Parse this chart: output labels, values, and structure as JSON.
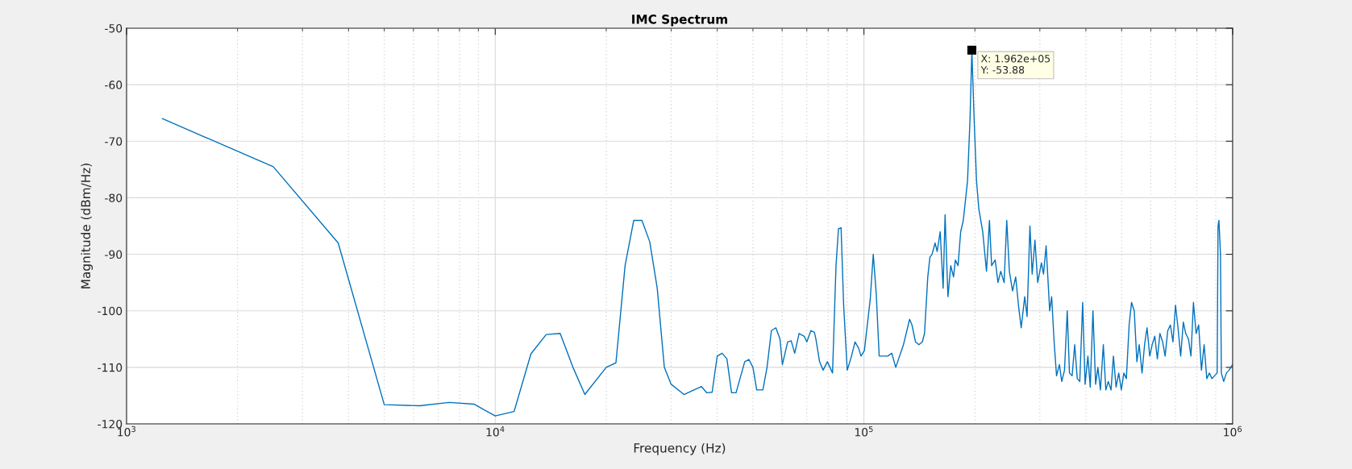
{
  "chart_data": {
    "type": "line",
    "title": "IMC Spectrum",
    "xlabel": "Frequency (Hz)",
    "ylabel": "Magnitude (dBm/Hz)",
    "log": "x",
    "grid": true,
    "marker": "none",
    "line_style": "solid",
    "xlim": [
      1000,
      1000000
    ],
    "xticks": [
      {
        "value": 1000,
        "label": "10$^{3}$"
      },
      {
        "value": 10000,
        "label": "10$^{4}$"
      },
      {
        "value": 100000,
        "label": "10$^{5}$"
      },
      {
        "value": 1000000,
        "label": "10$^{6}$"
      }
    ],
    "ylim": [
      -120,
      -50
    ],
    "yticks": [
      -120,
      -110,
      -100,
      -90,
      -80,
      -70,
      -60,
      -50
    ],
    "annotations": [
      {
        "text": "X: 1.962e+05\nY: -53.88",
        "x": 196200,
        "y": -53.88
      }
    ],
    "series": [
      {
        "color": "#0072bd",
        "x": [
          1250,
          2500,
          3750,
          5000,
          6250,
          7500,
          8750,
          10000,
          11250,
          12500,
          13750,
          15000,
          16250,
          17500,
          20000,
          21250,
          22500,
          23750,
          25000,
          26250,
          27500,
          28750,
          30000,
          32500,
          36250,
          37500,
          38750,
          40000,
          41250,
          42500,
          43750,
          45000,
          47500,
          48750,
          50000,
          51200,
          53200,
          54600,
          56100,
          57700,
          59200,
          60100,
          62100,
          63500,
          64900,
          66700,
          68900,
          70000,
          71800,
          73400,
          74100,
          75800,
          77500,
          79600,
          82200,
          84000,
          85300,
          86700,
          88100,
          90100,
          92100,
          94600,
          96600,
          98200,
          100300,
          104000,
          106000,
          108000,
          110000,
          116000,
          119000,
          122000,
          128000,
          133000,
          135000,
          138000,
          141000,
          144000,
          146000,
          149000,
          151000,
          153000,
          156000,
          158000,
          161000,
          164000,
          166000,
          169000,
          172000,
          175000,
          177000,
          180000,
          183000,
          186000,
          191000,
          194000,
          196200,
          199000,
          202000,
          205000,
          210000,
          215000,
          219000,
          222000,
          227000,
          231000,
          235000,
          240000,
          244000,
          248000,
          253000,
          258000,
          263000,
          267000,
          273000,
          277000,
          282000,
          286000,
          291000,
          296000,
          303000,
          307000,
          312000,
          319000,
          323000,
          328000,
          333000,
          339000,
          344000,
          350000,
          356000,
          361000,
          367000,
          373000,
          379000,
          385000,
          392000,
          398000,
          405000,
          411000,
          418000,
          425000,
          431000,
          438000,
          446000,
          453000,
          460000,
          468000,
          475000,
          483000,
          491000,
          499000,
          507000,
          515000,
          524000,
          532000,
          541000,
          550000,
          558000,
          568000,
          577000,
          586000,
          596000,
          605000,
          615000,
          625000,
          635000,
          646000,
          656000,
          667000,
          678000,
          689000,
          700000,
          711000,
          723000,
          735000,
          746000,
          759000,
          771000,
          783000,
          796000,
          809000,
          823000,
          837000,
          851000,
          865000,
          879000,
          893000,
          908000,
          913000,
          918000,
          927000,
          932000,
          946000,
          962000,
          978000,
          1000000
        ],
        "values": [
          -66,
          -74.5,
          -88,
          -116.6,
          -116.8,
          -116.2,
          -116.5,
          -118.6,
          -117.8,
          -107.6,
          -104.2,
          -104,
          -110,
          -114.8,
          -110,
          -109.2,
          -92,
          -84,
          -84,
          -87.8,
          -96,
          -110,
          -113,
          -114.8,
          -113.4,
          -114.5,
          -114.4,
          -108,
          -107.5,
          -108.5,
          -114.5,
          -114.5,
          -109,
          -108.6,
          -110,
          -114,
          -114,
          -110,
          -103.5,
          -103,
          -105,
          -109.5,
          -105.5,
          -105.3,
          -107.5,
          -104,
          -104.5,
          -105.5,
          -103.5,
          -103.8,
          -105,
          -109,
          -110.5,
          -109,
          -111,
          -92,
          -85.5,
          -85.3,
          -99,
          -110.5,
          -108.5,
          -105.5,
          -106.5,
          -108,
          -107,
          -98,
          -90,
          -97,
          -108,
          -108,
          -107.5,
          -110,
          -106,
          -101.5,
          -102.5,
          -105.5,
          -106,
          -105.5,
          -104,
          -94,
          -90.5,
          -90,
          -88,
          -89.5,
          -86,
          -96,
          -83,
          -97.5,
          -92,
          -94,
          -91,
          -92,
          -86,
          -84,
          -77,
          -66,
          -53.88,
          -66,
          -77,
          -82,
          -86,
          -93,
          -84,
          -92,
          -91,
          -95,
          -93,
          -95,
          -84,
          -93,
          -96.5,
          -94,
          -99.5,
          -103,
          -97.5,
          -101,
          -85,
          -93.5,
          -87.5,
          -95,
          -91.5,
          -93.5,
          -88.5,
          -100,
          -97.5,
          -105.5,
          -111.5,
          -109.5,
          -112.5,
          -110.5,
          -100,
          -111,
          -111.5,
          -106,
          -112,
          -112.5,
          -98.5,
          -113,
          -108,
          -113.5,
          -100,
          -113,
          -110,
          -114,
          -106,
          -114,
          -112.5,
          -114,
          -108,
          -113.5,
          -111,
          -114,
          -111,
          -112,
          -102.5,
          -98.5,
          -100,
          -109,
          -106,
          -111,
          -106,
          -103,
          -108,
          -106,
          -104.5,
          -108.5,
          -104,
          -105.5,
          -108,
          -103.5,
          -102.5,
          -105.5,
          -99,
          -103,
          -108,
          -102,
          -104,
          -105,
          -108,
          -98.5,
          -104,
          -102.5,
          -110.5,
          -106,
          -112,
          -111,
          -112,
          -111.5,
          -111,
          -85,
          -84,
          -90,
          -111,
          -112.5,
          -111,
          -110.5,
          -109.5
        ]
      }
    ]
  }
}
